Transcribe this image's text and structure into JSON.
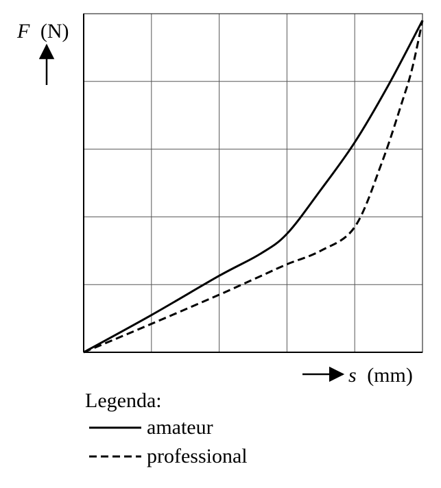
{
  "chart_data": {
    "type": "line",
    "ylabel_symbol": "F",
    "ylabel_unit": "(N)",
    "xlabel_symbol": "s",
    "xlabel_unit": "(mm)",
    "grid": true,
    "xlim": [
      0,
      5
    ],
    "ylim": [
      0,
      5
    ],
    "legend_title": "Legenda:",
    "series": [
      {
        "name": "amateur",
        "style": "solid",
        "x": [
          0,
          1,
          2,
          2.6,
          3,
          3.5,
          4,
          4.5,
          5
        ],
        "y": [
          0,
          0.55,
          1.13,
          1.45,
          1.75,
          2.4,
          3.1,
          3.95,
          4.9
        ]
      },
      {
        "name": "professional",
        "style": "dashed",
        "x": [
          0,
          1,
          2,
          2.6,
          3,
          3.5,
          4,
          4.4,
          4.7,
          4.85,
          5
        ],
        "y": [
          0,
          0.42,
          0.85,
          1.12,
          1.3,
          1.5,
          1.85,
          2.8,
          3.7,
          4.2,
          4.9
        ]
      }
    ]
  }
}
